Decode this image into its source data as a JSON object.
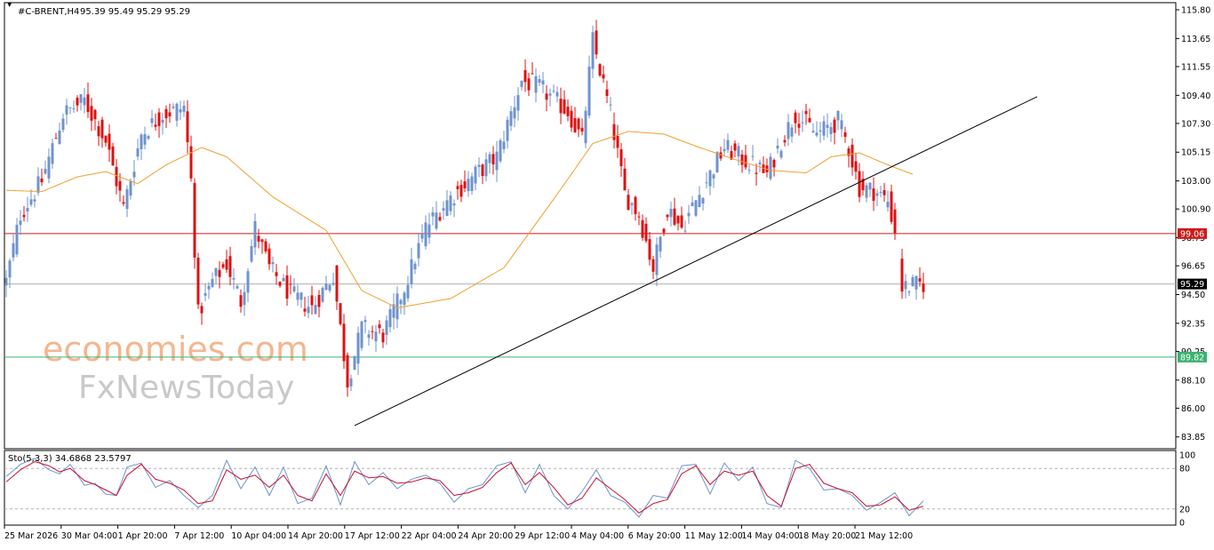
{
  "header": {
    "symbol": "#C-BRENT,H4",
    "ohlc": "95.39 95.49 95.29 95.29"
  },
  "watermark": {
    "line1": "economies.com",
    "line2": "FxNewsToday"
  },
  "colors": {
    "bull": "#6f93cc",
    "bear": "#e01010",
    "ma": "#f0a030",
    "resistance": "#cc1a1a",
    "support": "#3cb371",
    "current": "#b0b0b0",
    "trendline": "#000000",
    "stoch_main": "#6f93cc",
    "stoch_signal": "#c8102e"
  },
  "chart_data": [
    {
      "type": "candlestick",
      "title": "#C-BRENT,H4",
      "ylim": [
        83.3,
        116.0
      ],
      "y_ticks": [
        "115.80",
        "113.65",
        "111.55",
        "109.40",
        "107.30",
        "105.15",
        "103.00",
        "100.90",
        "98.75",
        "96.65",
        "94.50",
        "92.35",
        "90.25",
        "88.10",
        "86.00",
        "83.85"
      ],
      "x_ticks": [
        "25 Mar 2026",
        "30 Mar 04:00",
        "1 Apr 20:00",
        "7 Apr 12:00",
        "10 Apr 04:00",
        "14 Apr 20:00",
        "17 Apr 12:00",
        "22 Apr 04:00",
        "24 Apr 20:00",
        "29 Apr 12:00",
        "4 May 04:00",
        "6 May 20:00",
        "11 May 12:00",
        "14 May 04:00",
        "18 May 20:00",
        "21 May 12:00"
      ],
      "price_levels": [
        {
          "name": "resistance",
          "value": 99.06,
          "label": "99.06"
        },
        {
          "name": "current",
          "value": 95.29,
          "label": "95.29"
        },
        {
          "name": "support",
          "value": 89.82,
          "label": "89.82"
        }
      ],
      "trendline": {
        "from": {
          "bar": 98,
          "price": 84.7
        },
        "to": {
          "bar": 290,
          "price": 109.3
        }
      },
      "ma_keypoints": [
        [
          0,
          102.3
        ],
        [
          10,
          102.2
        ],
        [
          20,
          103.3
        ],
        [
          28,
          103.7
        ],
        [
          37,
          102.8
        ],
        [
          45,
          104.2
        ],
        [
          55,
          105.5
        ],
        [
          62,
          104.8
        ],
        [
          75,
          101.8
        ],
        [
          90,
          99.3
        ],
        [
          100,
          94.8
        ],
        [
          110,
          93.5
        ],
        [
          125,
          94.2
        ],
        [
          140,
          96.5
        ],
        [
          155,
          102.0
        ],
        [
          165,
          105.8
        ],
        [
          175,
          106.7
        ],
        [
          185,
          106.5
        ],
        [
          195,
          105.5
        ],
        [
          205,
          104.6
        ],
        [
          215,
          103.8
        ],
        [
          225,
          103.6
        ],
        [
          232,
          104.8
        ],
        [
          240,
          105.1
        ],
        [
          248,
          104.2
        ],
        [
          255,
          103.5
        ]
      ],
      "price_keypoints": [
        [
          0,
          95.5
        ],
        [
          4,
          100.5
        ],
        [
          10,
          103.0
        ],
        [
          16,
          108.0
        ],
        [
          22,
          109.0
        ],
        [
          28,
          106.0
        ],
        [
          33,
          101.0
        ],
        [
          38,
          106.5
        ],
        [
          44,
          108.0
        ],
        [
          50,
          108.5
        ],
        [
          52,
          103.0
        ],
        [
          54,
          93.0
        ],
        [
          58,
          95.5
        ],
        [
          62,
          96.8
        ],
        [
          66,
          94.0
        ],
        [
          70,
          99.5
        ],
        [
          74,
          96.5
        ],
        [
          80,
          94.5
        ],
        [
          86,
          93.5
        ],
        [
          92,
          96.0
        ],
        [
          96,
          88.0
        ],
        [
          100,
          92.0
        ],
        [
          106,
          91.5
        ],
        [
          112,
          95.0
        ],
        [
          118,
          99.5
        ],
        [
          124,
          101.5
        ],
        [
          132,
          103.5
        ],
        [
          138,
          104.8
        ],
        [
          145,
          110.5
        ],
        [
          150,
          110.0
        ],
        [
          158,
          108.2
        ],
        [
          162,
          106.0
        ],
        [
          165,
          113.5
        ],
        [
          170,
          108.0
        ],
        [
          174,
          102.0
        ],
        [
          178,
          100.5
        ],
        [
          182,
          96.5
        ],
        [
          186,
          101.0
        ],
        [
          190,
          99.5
        ],
        [
          196,
          102.5
        ],
        [
          202,
          105.5
        ],
        [
          208,
          104.5
        ],
        [
          214,
          103.5
        ],
        [
          218,
          106.0
        ],
        [
          222,
          108.0
        ],
        [
          228,
          106.5
        ],
        [
          234,
          107.5
        ],
        [
          237,
          105.5
        ],
        [
          240,
          102.5
        ],
        [
          244,
          102.3
        ],
        [
          248,
          101.5
        ],
        [
          250,
          99.3
        ],
        [
          252,
          95.0
        ],
        [
          258,
          95.3
        ]
      ],
      "gap_range": [
        250,
        252
      ]
    },
    {
      "type": "line",
      "title": "Sto(5,3,3) 34.6868 23.5797",
      "ylim": [
        0,
        100
      ],
      "y_ticks": [
        "100",
        "80",
        "20",
        "0"
      ],
      "levels": [
        80,
        20
      ],
      "series": [
        {
          "name": "main",
          "keypoints": [
            [
              0,
              68
            ],
            [
              4,
              86
            ],
            [
              8,
              95
            ],
            [
              12,
              78
            ],
            [
              15,
              72
            ],
            [
              18,
              86
            ],
            [
              22,
              55
            ],
            [
              25,
              58
            ],
            [
              28,
              42
            ],
            [
              31,
              40
            ],
            [
              34,
              82
            ],
            [
              38,
              88
            ],
            [
              42,
              52
            ],
            [
              46,
              62
            ],
            [
              50,
              40
            ],
            [
              54,
              22
            ],
            [
              58,
              40
            ],
            [
              62,
              92
            ],
            [
              66,
              50
            ],
            [
              70,
              82
            ],
            [
              74,
              40
            ],
            [
              78,
              82
            ],
            [
              82,
              28
            ],
            [
              86,
              36
            ],
            [
              90,
              84
            ],
            [
              94,
              26
            ],
            [
              98,
              90
            ],
            [
              102,
              56
            ],
            [
              106,
              74
            ],
            [
              110,
              50
            ],
            [
              114,
              64
            ],
            [
              118,
              70
            ],
            [
              122,
              58
            ],
            [
              126,
              30
            ],
            [
              130,
              50
            ],
            [
              134,
              56
            ],
            [
              138,
              84
            ],
            [
              142,
              90
            ],
            [
              146,
              44
            ],
            [
              150,
              86
            ],
            [
              154,
              40
            ],
            [
              158,
              20
            ],
            [
              162,
              46
            ],
            [
              166,
              78
            ],
            [
              170,
              40
            ],
            [
              174,
              30
            ],
            [
              178,
              8
            ],
            [
              182,
              40
            ],
            [
              186,
              36
            ],
            [
              190,
              84
            ],
            [
              194,
              86
            ],
            [
              198,
              42
            ],
            [
              202,
              88
            ],
            [
              206,
              62
            ],
            [
              210,
              82
            ],
            [
              214,
              28
            ],
            [
              218,
              22
            ],
            [
              222,
              92
            ],
            [
              226,
              80
            ],
            [
              230,
              48
            ],
            [
              234,
              50
            ],
            [
              238,
              40
            ],
            [
              242,
              18
            ],
            [
              246,
              30
            ],
            [
              250,
              44
            ],
            [
              254,
              10
            ],
            [
              258,
              32
            ]
          ]
        },
        {
          "name": "signal",
          "keypoints": [
            [
              0,
              60
            ],
            [
              4,
              78
            ],
            [
              8,
              90
            ],
            [
              12,
              84
            ],
            [
              15,
              75
            ],
            [
              18,
              80
            ],
            [
              22,
              62
            ],
            [
              25,
              56
            ],
            [
              28,
              48
            ],
            [
              31,
              40
            ],
            [
              34,
              70
            ],
            [
              38,
              86
            ],
            [
              42,
              64
            ],
            [
              46,
              58
            ],
            [
              50,
              48
            ],
            [
              54,
              28
            ],
            [
              58,
              32
            ],
            [
              62,
              78
            ],
            [
              66,
              64
            ],
            [
              70,
              70
            ],
            [
              74,
              52
            ],
            [
              78,
              70
            ],
            [
              82,
              40
            ],
            [
              86,
              32
            ],
            [
              90,
              72
            ],
            [
              94,
              40
            ],
            [
              98,
              76
            ],
            [
              102,
              66
            ],
            [
              106,
              68
            ],
            [
              110,
              58
            ],
            [
              114,
              60
            ],
            [
              118,
              66
            ],
            [
              122,
              62
            ],
            [
              126,
              40
            ],
            [
              130,
              44
            ],
            [
              134,
              52
            ],
            [
              138,
              74
            ],
            [
              142,
              88
            ],
            [
              146,
              56
            ],
            [
              150,
              74
            ],
            [
              154,
              52
            ],
            [
              158,
              26
            ],
            [
              162,
              36
            ],
            [
              166,
              66
            ],
            [
              170,
              50
            ],
            [
              174,
              34
            ],
            [
              178,
              14
            ],
            [
              182,
              28
            ],
            [
              186,
              34
            ],
            [
              190,
              72
            ],
            [
              194,
              84
            ],
            [
              198,
              56
            ],
            [
              202,
              76
            ],
            [
              206,
              70
            ],
            [
              210,
              76
            ],
            [
              214,
              40
            ],
            [
              218,
              24
            ],
            [
              222,
              80
            ],
            [
              226,
              86
            ],
            [
              230,
              58
            ],
            [
              234,
              50
            ],
            [
              238,
              44
            ],
            [
              242,
              24
            ],
            [
              246,
              26
            ],
            [
              250,
              38
            ],
            [
              254,
              18
            ],
            [
              258,
              24
            ]
          ]
        }
      ]
    }
  ]
}
